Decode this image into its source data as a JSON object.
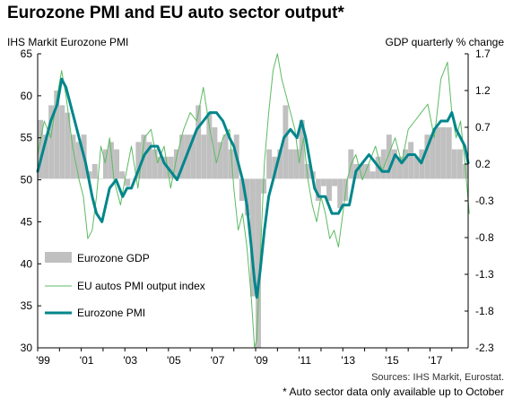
{
  "title": "Eurozone PMI and EU auto sector output*",
  "left_axis_title": "IHS Markit Eurozone PMI",
  "right_axis_title": "GDP quarterly % change",
  "sources": "Sources: IHS Markit, Eurostat.",
  "note": "* Auto sector data only available up to October",
  "colors": {
    "gdp": "#c0c0c0",
    "autos": "#5dbb63",
    "pmi": "#00868b"
  },
  "chart_data": {
    "type": "bar+line",
    "left_ylim": [
      30,
      65
    ],
    "left_ticks": [
      "65",
      "60",
      "55",
      "50",
      "45",
      "40",
      "35",
      "30"
    ],
    "right_ylim": [
      -2.3,
      1.7
    ],
    "right_ticks": [
      "1.7",
      "1.2",
      "0.7",
      "0.2",
      "-0.3",
      "-0.8",
      "-1.3",
      "-1.8",
      "-2.3"
    ],
    "xlim": [
      1999.0,
      2018.75
    ],
    "x_tick_labels": [
      "'99",
      "'01",
      "'03",
      "'05",
      "'07",
      "'09",
      "'11",
      "'13",
      "'15",
      "'17"
    ],
    "legend": {
      "gdp": "Eurozone GDP",
      "autos": "EU autos PMI output index",
      "pmi": "Eurozone PMI"
    },
    "gdp": {
      "name": "Eurozone GDP",
      "quarters": [
        "1999Q1",
        "1999Q2",
        "1999Q3",
        "1999Q4",
        "2000Q1",
        "2000Q2",
        "2000Q3",
        "2000Q4",
        "2001Q1",
        "2001Q2",
        "2001Q3",
        "2001Q4",
        "2002Q1",
        "2002Q2",
        "2002Q3",
        "2002Q4",
        "2003Q1",
        "2003Q2",
        "2003Q3",
        "2003Q4",
        "2004Q1",
        "2004Q2",
        "2004Q3",
        "2004Q4",
        "2005Q1",
        "2005Q2",
        "2005Q3",
        "2005Q4",
        "2006Q1",
        "2006Q2",
        "2006Q3",
        "2006Q4",
        "2007Q1",
        "2007Q2",
        "2007Q3",
        "2007Q4",
        "2008Q1",
        "2008Q2",
        "2008Q3",
        "2008Q4",
        "2009Q1",
        "2009Q2",
        "2009Q3",
        "2009Q4",
        "2010Q1",
        "2010Q2",
        "2010Q3",
        "2010Q4",
        "2011Q1",
        "2011Q2",
        "2011Q3",
        "2011Q4",
        "2012Q1",
        "2012Q2",
        "2012Q3",
        "2012Q4",
        "2013Q1",
        "2013Q2",
        "2013Q3",
        "2013Q4",
        "2014Q1",
        "2014Q2",
        "2014Q3",
        "2014Q4",
        "2015Q1",
        "2015Q2",
        "2015Q3",
        "2015Q4",
        "2016Q1",
        "2016Q2",
        "2016Q3",
        "2016Q4",
        "2017Q1",
        "2017Q2",
        "2017Q3",
        "2017Q4",
        "2018Q1",
        "2018Q2",
        "2018Q3"
      ],
      "values": [
        0.8,
        0.6,
        1.0,
        1.2,
        1.0,
        0.9,
        0.6,
        0.5,
        0.6,
        0.1,
        0.2,
        0.0,
        0.4,
        0.5,
        0.4,
        0.1,
        -0.1,
        0.0,
        0.5,
        0.6,
        0.5,
        0.4,
        0.3,
        0.3,
        0.3,
        0.4,
        0.6,
        0.6,
        0.6,
        1.0,
        0.6,
        0.9,
        0.7,
        0.5,
        0.6,
        0.4,
        0.6,
        -0.3,
        -0.5,
        -1.6,
        -2.8,
        -0.2,
        0.4,
        0.3,
        0.4,
        1.0,
        0.4,
        0.4,
        0.8,
        0.2,
        0.1,
        -0.3,
        -0.1,
        -0.3,
        -0.1,
        -0.4,
        -0.3,
        0.4,
        0.2,
        0.2,
        0.2,
        0.1,
        0.3,
        0.4,
        0.6,
        0.4,
        0.3,
        0.4,
        0.5,
        0.3,
        0.4,
        0.6,
        0.6,
        0.7,
        0.7,
        0.7,
        0.4,
        0.4,
        0.2
      ]
    },
    "pmi": {
      "name": "Eurozone PMI",
      "x": [
        1999.0,
        1999.3,
        1999.6,
        1999.9,
        2000.1,
        2000.3,
        2000.6,
        2000.9,
        2001.2,
        2001.5,
        2001.7,
        2001.95,
        2002.3,
        2002.6,
        2002.9,
        2003.1,
        2003.3,
        2003.6,
        2003.9,
        2004.2,
        2004.5,
        2004.8,
        2005.1,
        2005.4,
        2005.7,
        2006.0,
        2006.3,
        2006.6,
        2006.9,
        2007.2,
        2007.5,
        2007.8,
        2008.0,
        2008.2,
        2008.4,
        2008.6,
        2008.8,
        2008.95,
        2009.05,
        2009.2,
        2009.4,
        2009.6,
        2009.8,
        2010.0,
        2010.3,
        2010.6,
        2010.9,
        2011.1,
        2011.3,
        2011.5,
        2011.7,
        2011.9,
        2012.2,
        2012.5,
        2012.8,
        2013.0,
        2013.3,
        2013.6,
        2013.9,
        2014.2,
        2014.5,
        2014.8,
        2015.1,
        2015.4,
        2015.7,
        2016.0,
        2016.3,
        2016.6,
        2016.9,
        2017.2,
        2017.5,
        2017.8,
        2018.0,
        2018.2,
        2018.4,
        2018.6,
        2018.75
      ],
      "values": [
        51,
        54,
        57,
        59,
        62,
        61,
        58,
        55,
        52,
        48,
        46,
        45,
        49,
        50,
        48,
        49,
        49,
        51,
        53,
        54,
        54,
        52,
        51,
        50,
        52,
        54,
        56,
        57,
        58,
        58,
        57,
        55,
        54,
        52,
        50,
        47,
        42,
        38,
        36,
        39,
        44,
        48,
        50,
        52,
        55,
        56,
        55,
        57,
        55,
        52,
        49,
        48,
        48,
        46,
        46,
        47,
        47,
        51,
        52,
        53,
        52,
        51,
        51,
        53,
        52,
        53,
        53,
        52,
        54,
        56,
        57,
        57,
        58,
        56,
        55,
        54,
        52
      ]
    },
    "autos": {
      "name": "EU autos PMI output index",
      "x": [
        1999.0,
        1999.3,
        1999.6,
        1999.9,
        2000.1,
        2000.3,
        2000.6,
        2000.9,
        2001.1,
        2001.3,
        2001.5,
        2001.7,
        2001.9,
        2002.1,
        2002.3,
        2002.5,
        2002.8,
        2003.0,
        2003.3,
        2003.6,
        2003.9,
        2004.2,
        2004.5,
        2004.8,
        2005.1,
        2005.4,
        2005.7,
        2006.0,
        2006.3,
        2006.6,
        2006.9,
        2007.2,
        2007.5,
        2007.8,
        2008.0,
        2008.2,
        2008.4,
        2008.6,
        2008.8,
        2008.95,
        2009.05,
        2009.2,
        2009.4,
        2009.6,
        2009.8,
        2010.0,
        2010.2,
        2010.4,
        2010.6,
        2010.8,
        2011.0,
        2011.2,
        2011.4,
        2011.6,
        2011.8,
        2012.0,
        2012.2,
        2012.4,
        2012.6,
        2012.8,
        2013.0,
        2013.2,
        2013.4,
        2013.6,
        2013.9,
        2014.2,
        2014.5,
        2014.8,
        2015.1,
        2015.4,
        2015.7,
        2016.0,
        2016.3,
        2016.6,
        2016.9,
        2017.2,
        2017.5,
        2017.8,
        2018.0,
        2018.2,
        2018.4,
        2018.6,
        2018.8
      ],
      "values": [
        53,
        57,
        55,
        60,
        63,
        60,
        54,
        50,
        48,
        43,
        44,
        48,
        54,
        52,
        55,
        50,
        47,
        50,
        54,
        49,
        55,
        56,
        52,
        54,
        49,
        53,
        56,
        58,
        57,
        61,
        56,
        52,
        55,
        56,
        49,
        44,
        46,
        42,
        36,
        30,
        31,
        40,
        52,
        58,
        63,
        65,
        62,
        60,
        58,
        56,
        52,
        55,
        50,
        47,
        45,
        48,
        46,
        43,
        44,
        42,
        46,
        50,
        52,
        53,
        50,
        52,
        54,
        51,
        53,
        55,
        52,
        56,
        57,
        58,
        59,
        55,
        62,
        64,
        58,
        55,
        57,
        52,
        46
      ]
    }
  }
}
